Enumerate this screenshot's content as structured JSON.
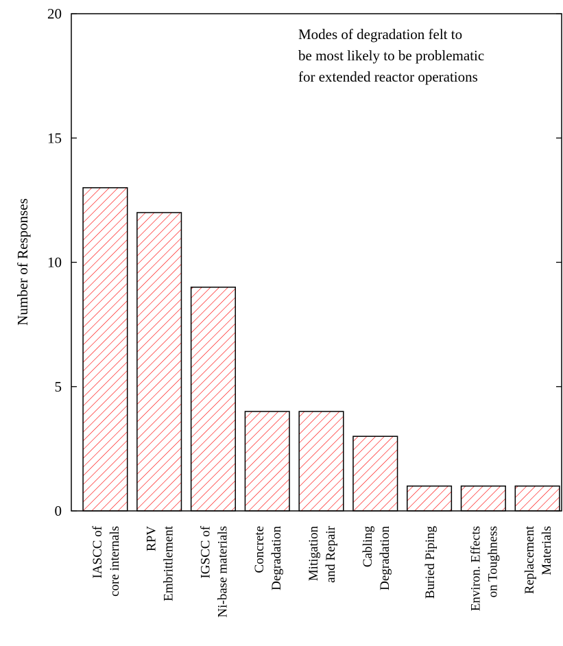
{
  "chart_data": {
    "type": "bar",
    "title": "",
    "ylabel": "Number of Responses",
    "xlabel": "",
    "ylim": [
      0,
      20
    ],
    "yticks": [
      0,
      5,
      10,
      15,
      20
    ],
    "grid": false,
    "bar_style": "hatched",
    "colors": {
      "hatch": "#ff0000",
      "border": "#000000",
      "background": "#ffffff"
    },
    "annotation": [
      "Modes of degradation felt to",
      "be most likely to be problematic",
      "for extended reactor operations"
    ],
    "categories": [
      [
        "IASCC of",
        "core internals"
      ],
      [
        "RPV",
        "Embrittlement"
      ],
      [
        "IGSCC of",
        "Ni-base materials"
      ],
      [
        "Concrete",
        "Degradation"
      ],
      [
        "Mitigation",
        "and Repair"
      ],
      [
        "Cabling",
        "Degradation"
      ],
      [
        "Buried Piping"
      ],
      [
        "Environ. Effects",
        "on Toughness"
      ],
      [
        "Replacement",
        "Materials"
      ]
    ],
    "values": [
      13,
      12,
      9,
      4,
      4,
      3,
      1,
      1,
      1
    ]
  }
}
